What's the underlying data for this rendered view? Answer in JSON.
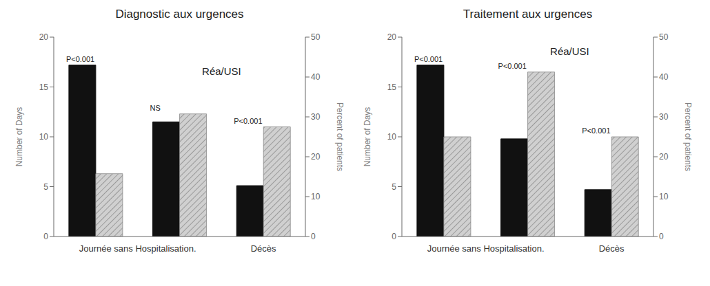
{
  "chart_data": [
    {
      "type": "bar",
      "title": "Diagnostic aux urgences",
      "categories": [
        "Journée sans Hospitalisation.",
        null,
        "Décès"
      ],
      "series": [
        {
          "color": "#111111",
          "values": [
            17.2,
            11.5,
            5.1
          ]
        },
        {
          "color": "#d0d0d0",
          "values": [
            6.3,
            12.3,
            11.0
          ]
        }
      ],
      "ylabel": "Number of Days",
      "ylim": [
        0,
        20
      ],
      "yticks": [
        0,
        5,
        10,
        15,
        20
      ],
      "y2label": "Percent of patients",
      "y2lim": [
        0,
        50
      ],
      "y2ticks": [
        0,
        10,
        20,
        30,
        40,
        50
      ],
      "grid": false,
      "annotations": [
        {
          "text": "P<0.001",
          "category": 0
        },
        {
          "text": "NS",
          "category": 1
        },
        {
          "text": "P<0.001",
          "category": 2
        },
        {
          "text": "Réa/USI",
          "y": 16.5
        }
      ]
    },
    {
      "type": "bar",
      "title": "Traitement aux urgences",
      "categories": [
        "Journée sans Hospitalisation.",
        null,
        "Décès"
      ],
      "series": [
        {
          "color": "#111111",
          "values": [
            17.2,
            9.8,
            4.7
          ]
        },
        {
          "color": "#d0d0d0",
          "values": [
            10.0,
            16.5,
            10.0
          ]
        }
      ],
      "ylabel": "Number of Days",
      "ylim": [
        0,
        20
      ],
      "yticks": [
        0,
        5,
        10,
        15,
        20
      ],
      "y2label": "Percent of patients",
      "y2lim": [
        0,
        50
      ],
      "y2ticks": [
        0,
        10,
        20,
        30,
        40,
        50
      ],
      "grid": false,
      "annotations": [
        {
          "text": "P<0.001",
          "category": 0
        },
        {
          "text": "P<0.001",
          "category": 1
        },
        {
          "text": "P<0.001",
          "category": 2
        },
        {
          "text": "Réa/USI",
          "y": 18.5
        }
      ]
    }
  ]
}
